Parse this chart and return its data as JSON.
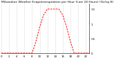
{
  "title": "Milwaukee Weather Evapotranspiration per Hour (Last 24 Hours) (Oz/sq ft)",
  "hours": [
    0,
    1,
    2,
    3,
    4,
    5,
    6,
    7,
    8,
    9,
    10,
    11,
    12,
    13,
    14,
    15,
    16,
    17,
    18,
    19,
    20,
    21,
    22,
    23
  ],
  "values": [
    0,
    0,
    0,
    0,
    0,
    0,
    0,
    0,
    0,
    0.04,
    0.09,
    0.13,
    0.15,
    0.15,
    0.15,
    0.15,
    0.13,
    0.09,
    0.04,
    0,
    0,
    0,
    0,
    0
  ],
  "line_color": "#ff0000",
  "line_width": 0.7,
  "grid_color": "#888888",
  "bg_color": "#ffffff",
  "ylim": [
    0,
    0.17
  ],
  "ytick_labels": [
    "0",
    ".05",
    ".1",
    ".15"
  ],
  "ytick_values": [
    0,
    0.05,
    0.1,
    0.15
  ],
  "title_fontsize": 3.2,
  "tick_fontsize": 2.8,
  "dash_on": 2.5,
  "dash_off": 1.5
}
